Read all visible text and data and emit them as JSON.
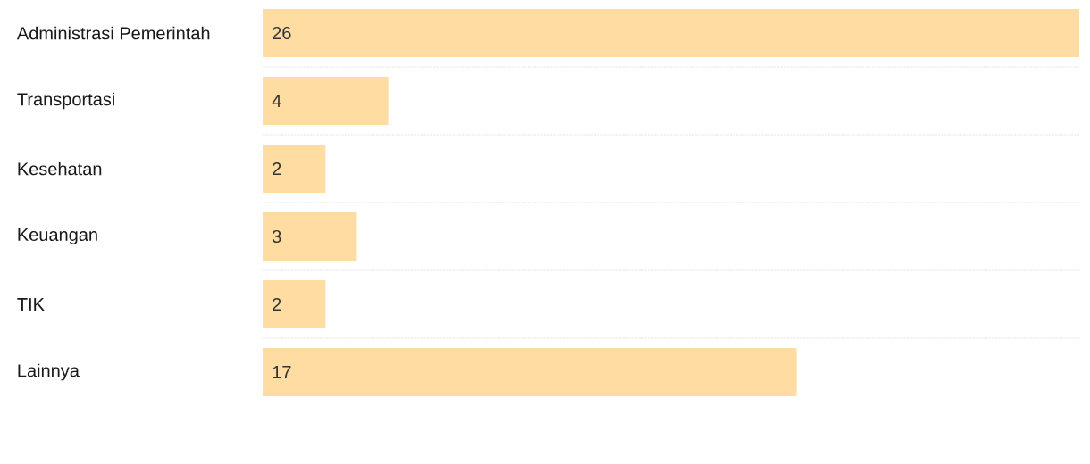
{
  "chart_data": {
    "type": "bar",
    "orientation": "horizontal",
    "categories": [
      "Administrasi Pemerintah",
      "Transportasi",
      "Kesehatan",
      "Keuangan",
      "TIK",
      "Lainnya"
    ],
    "values": [
      26,
      4,
      2,
      3,
      2,
      17
    ],
    "color": "#fedca2",
    "data_labels": true,
    "grid": "y"
  }
}
